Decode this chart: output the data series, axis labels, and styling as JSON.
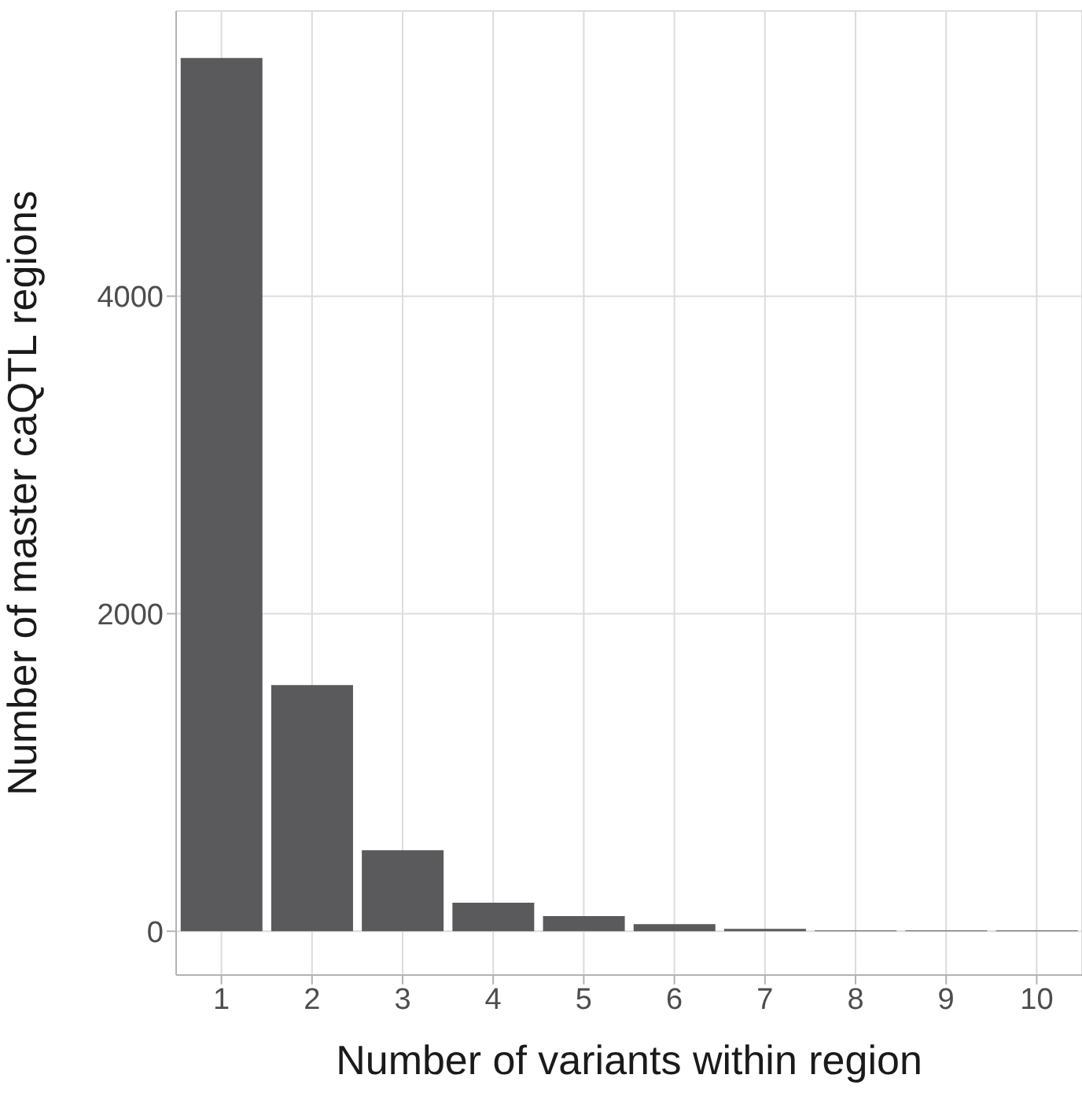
{
  "chart_data": {
    "type": "bar",
    "xlabel": "Number of variants within region",
    "ylabel": "Number of master caQTL regions",
    "categories": [
      "1",
      "2",
      "3",
      "4",
      "5",
      "6",
      "7",
      "8",
      "9",
      "10"
    ],
    "values": [
      5500,
      1550,
      510,
      180,
      95,
      45,
      15,
      5,
      5,
      5
    ],
    "color": "#5a5a5c",
    "ylim": [
      -276,
      5796
    ],
    "yticks": [
      0,
      2000,
      4000
    ],
    "grid": true
  }
}
